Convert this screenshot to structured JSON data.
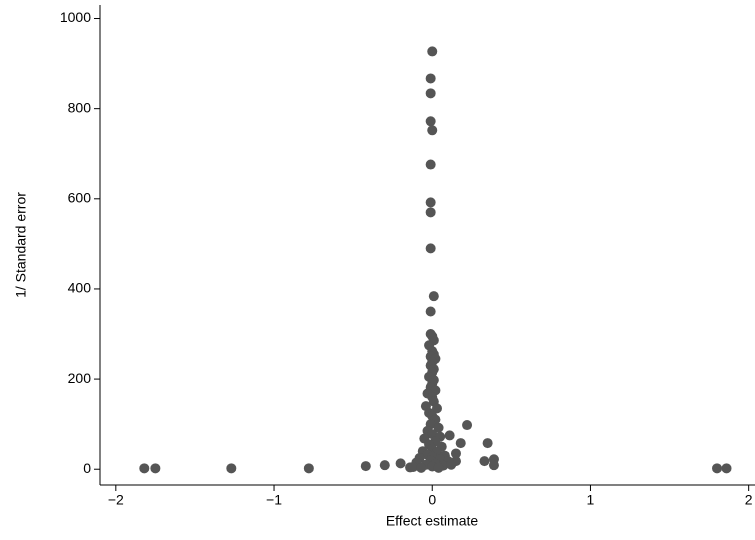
{
  "chart_data": {
    "type": "scatter",
    "x_label": "Effect estimate",
    "y_label": "1/ Standard error",
    "color": "#555555",
    "xlim": [
      -2.1,
      2.04
    ],
    "ylim": [
      -35,
      1030
    ],
    "xticks": [
      {
        "value": -2,
        "label": "−2"
      },
      {
        "value": -1,
        "label": "−1"
      },
      0,
      1,
      2
    ],
    "yticks": [
      0,
      200,
      400,
      600,
      800,
      1000
    ],
    "x": [
      0,
      -0.01,
      -0.01,
      -0.01,
      0,
      -0.01,
      -0.01,
      -0.01,
      -0.01,
      0.01,
      -0.01,
      -1.82,
      -1.75,
      -1.27,
      -0.78,
      -0.42,
      -0.3,
      -0.2,
      -0.14,
      0.22,
      0.35,
      0.18,
      0.11,
      0.33,
      0.39,
      0.39,
      1.8,
      1.86,
      0.15,
      -0.01,
      0,
      0.01,
      -0.02,
      0,
      0.01,
      -0.01,
      0.02,
      0,
      -0.01,
      0.01,
      0,
      -0.02,
      0.01,
      0,
      -0.01,
      0.02,
      -0.03,
      0,
      0.01,
      -0.04,
      0.03,
      -0.02,
      0,
      0.02,
      -0.01,
      0.04,
      -0.03,
      0,
      0.05,
      -0.05,
      0.02,
      -0.02,
      0.06,
      0,
      -0.06,
      0.03,
      -0.03,
      0.08,
      0,
      -0.08,
      0.05,
      -0.01,
      0.1,
      -0.1,
      0.02,
      -0.04,
      0.07,
      0,
      -0.12,
      0.12,
      0.15,
      -0.07,
      0.04
    ],
    "values": [
      927,
      867,
      834,
      772,
      752,
      676,
      592,
      570,
      490,
      384,
      350,
      2,
      2,
      2,
      2,
      7,
      9,
      13,
      4,
      98,
      58,
      58,
      75,
      18,
      22,
      9,
      2,
      2,
      18,
      300,
      295,
      286,
      275,
      262,
      255,
      250,
      245,
      238,
      230,
      222,
      215,
      205,
      198,
      190,
      182,
      175,
      168,
      160,
      150,
      140,
      135,
      125,
      118,
      110,
      100,
      92,
      85,
      78,
      72,
      68,
      62,
      55,
      50,
      45,
      40,
      38,
      32,
      30,
      28,
      25,
      22,
      20,
      18,
      15,
      12,
      10,
      8,
      6,
      5,
      10,
      35,
      3,
      3
    ]
  }
}
